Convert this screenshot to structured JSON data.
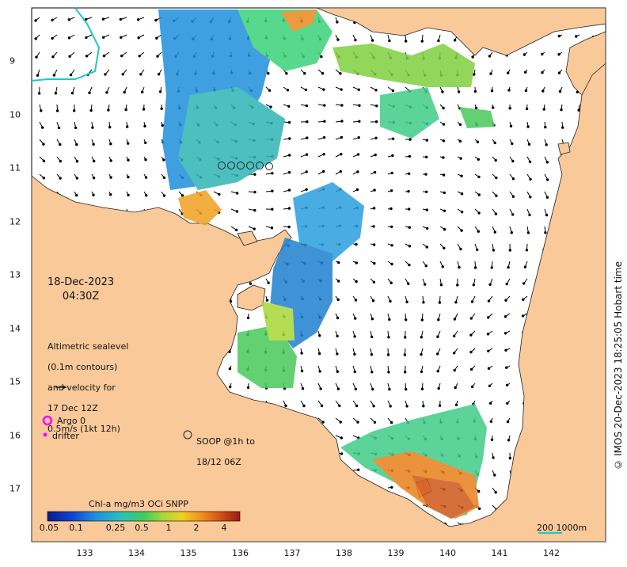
{
  "map": {
    "date": "18-Dec-2023",
    "time": "04:30Z",
    "legend_lines": [
      "Altimetric sealevel",
      "(0.1m contours)",
      "and velocity for",
      "17 Dec 12Z",
      "0.5m/s (1kt 12h)"
    ],
    "argo_label": "Argo 0",
    "drifter_label": "drifter",
    "soop_lines": [
      "SOOP @1h to",
      "18/12 06Z"
    ],
    "scale_label": "200  1000m",
    "credit": "© IMOS 20-Dec-2023 18:25:05 Hobart time",
    "x_ticks": [
      "133",
      "134",
      "135",
      "136",
      "137",
      "138",
      "139",
      "140",
      "141",
      "142"
    ],
    "y_ticks": [
      "9",
      "10",
      "11",
      "12",
      "13",
      "14",
      "15",
      "16",
      "17"
    ],
    "colorbar": {
      "title": "Chl-a mg/m3 OCi SNPP",
      "ticks": [
        "0.05",
        "0.1",
        "0.25",
        "0.5",
        "1",
        "2",
        "4"
      ]
    },
    "colors": {
      "land": "#f9c99a",
      "ocean": "#ffffff",
      "argo": "#ff00ff",
      "drifter": "#ff00ff",
      "scale_bar": "#20c8c8"
    }
  }
}
